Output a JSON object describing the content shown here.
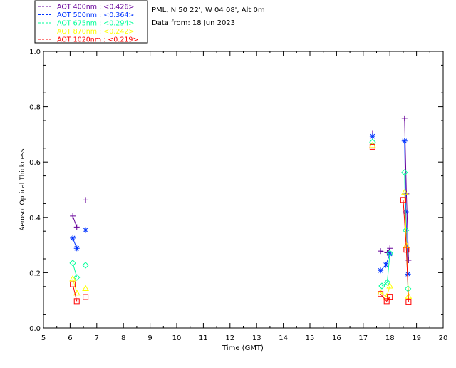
{
  "header": {
    "site": "PML, N 50 22', W 04 08', Alt 0m",
    "date": "Data from: 18 Jun 2023"
  },
  "legend": [
    {
      "label": "AOT  400nm : <0.426>",
      "color": "#660099"
    },
    {
      "label": "AOT  500nm : <0.364>",
      "color": "#0033ff"
    },
    {
      "label": "AOT  675nm : <0.294>",
      "color": "#00ff99"
    },
    {
      "label": "AOT  870nm : <0.242>",
      "color": "#ffff00"
    },
    {
      "label": "AOT 1020nm : <0.219>",
      "color": "#ff0000"
    }
  ],
  "chart_data": {
    "type": "scatter",
    "xlabel": "Time (GMT)",
    "ylabel": "Aerosol Optical Thickness",
    "xlim": [
      5,
      20
    ],
    "ylim": [
      0.0,
      1.0
    ],
    "xticks": [
      5,
      6,
      7,
      8,
      9,
      10,
      11,
      12,
      13,
      14,
      15,
      16,
      17,
      18,
      19,
      20
    ],
    "yticks": [
      0.0,
      0.2,
      0.4,
      0.6,
      0.8,
      1.0
    ],
    "legend_position": "top-left",
    "grid": false,
    "series": [
      {
        "name": "AOT  400nm : <0.426>",
        "color": "#660099",
        "marker": "plus",
        "segments": [
          [
            [
              6.1,
              0.405
            ],
            [
              6.25,
              0.365
            ]
          ],
          [
            [
              6.58,
              0.463
            ]
          ],
          [
            [
              17.35,
              0.705
            ]
          ],
          [
            [
              17.65,
              0.278
            ],
            [
              17.9,
              0.272
            ],
            [
              18.0,
              0.288
            ]
          ],
          [
            [
              18.55,
              0.758
            ],
            [
              18.62,
              0.485
            ],
            [
              18.7,
              0.245
            ]
          ]
        ]
      },
      {
        "name": "AOT  500nm : <0.364>",
        "color": "#0033ff",
        "marker": "asterisk",
        "segments": [
          [
            [
              6.1,
              0.325
            ],
            [
              6.25,
              0.288
            ]
          ],
          [
            [
              6.58,
              0.354
            ]
          ],
          [
            [
              17.35,
              0.693
            ]
          ],
          [
            [
              17.65,
              0.208
            ],
            [
              17.85,
              0.228
            ],
            [
              18.0,
              0.268
            ]
          ],
          [
            [
              18.55,
              0.676
            ],
            [
              18.6,
              0.42
            ],
            [
              18.68,
              0.195
            ]
          ]
        ]
      },
      {
        "name": "AOT  675nm : <0.294>",
        "color": "#00ff99",
        "marker": "diamond",
        "segments": [
          [
            [
              6.1,
              0.235
            ],
            [
              6.25,
              0.183
            ]
          ],
          [
            [
              6.58,
              0.227
            ]
          ],
          [
            [
              17.35,
              0.672
            ]
          ],
          [
            [
              17.7,
              0.152
            ],
            [
              17.9,
              0.165
            ],
            [
              18.0,
              0.27
            ]
          ],
          [
            [
              18.55,
              0.562
            ],
            [
              18.6,
              0.353
            ],
            [
              18.68,
              0.142
            ]
          ]
        ]
      },
      {
        "name": "AOT  870nm : <0.242>",
        "color": "#ffff00",
        "marker": "triangle",
        "segments": [
          [
            [
              6.1,
              0.178
            ],
            [
              6.25,
              0.127
            ]
          ],
          [
            [
              6.58,
              0.143
            ]
          ],
          [
            [
              17.35,
              0.66
            ]
          ],
          [
            [
              17.65,
              0.128
            ],
            [
              17.88,
              0.113
            ],
            [
              18.0,
              0.152
            ]
          ],
          [
            [
              18.55,
              0.49
            ],
            [
              18.62,
              0.298
            ],
            [
              18.7,
              0.115
            ]
          ]
        ]
      },
      {
        "name": "AOT 1020nm : <0.219>",
        "color": "#ff0000",
        "marker": "square",
        "segments": [
          [
            [
              6.1,
              0.158
            ],
            [
              6.25,
              0.097
            ]
          ],
          [
            [
              6.58,
              0.112
            ]
          ],
          [
            [
              17.35,
              0.655
            ]
          ],
          [
            [
              17.65,
              0.123
            ],
            [
              17.88,
              0.097
            ],
            [
              18.0,
              0.113
            ]
          ],
          [
            [
              18.5,
              0.463
            ],
            [
              18.62,
              0.283
            ],
            [
              18.7,
              0.095
            ]
          ]
        ]
      }
    ]
  }
}
